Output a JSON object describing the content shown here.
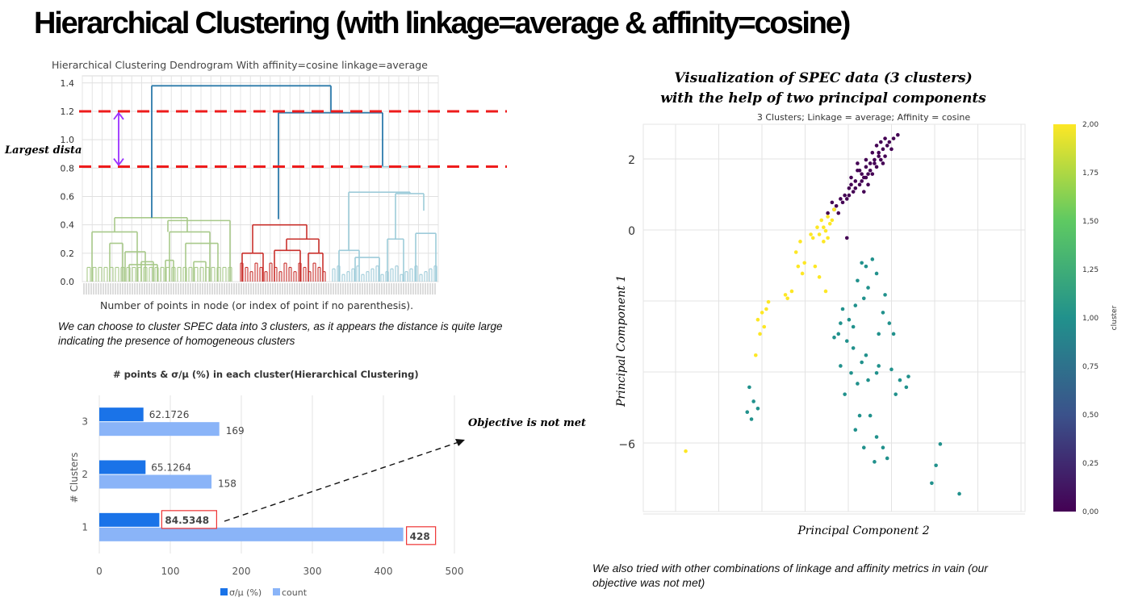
{
  "header": {
    "title": "Hierarchical Clustering (with linkage=average & affinity=cosine)"
  },
  "dendrogram": {
    "title": "Hierarchical Clustering Dendrogram With affinity=cosine linkage=average",
    "xlabel": "Number of points in node (or index of point if no parenthesis).",
    "annotation": "Largest distance",
    "note": "We can choose to cluster SPEC data into 3 clusters, as it appears the distance is quite large indicating the presence of homogeneous clusters",
    "colors": {
      "green": "#a8c98a",
      "red": "#c9302c",
      "lightblue": "#9dcbd9",
      "top": "#2d7bab",
      "cut": "#ee1c1c",
      "arrow": "#9b30ff"
    }
  },
  "annotations": {
    "objective": "Objective is not met"
  },
  "pca": {
    "title_line1": "Visualization of SPEC data (3 clusters)",
    "title_line2": "with the help of two principal components",
    "subtitle": "3 Clusters; Linkage = average; Affinity = cosine",
    "xlabel": "Principal Component 2",
    "ylabel": "Principal Component 1",
    "colorbar_label": "cluster"
  },
  "bottom_note": "We also tried with other combinations of linkage and affinity metrics in vain (our objective was not met)",
  "chart_data": [
    {
      "type": "dendrogram",
      "title": "Hierarchical Clustering Dendrogram With affinity=cosine linkage=average",
      "xlabel": "Number of points in node (or index of point if no parenthesis).",
      "ylabel": "",
      "yticks": [
        "0.0",
        "0.2",
        "0.4",
        "0.6",
        "0.8",
        "1.0",
        "1.2",
        "1.4"
      ],
      "ylim": [
        0,
        1.45
      ],
      "cut_lines": [
        1.2,
        0.81
      ],
      "merges": [
        {
          "name": "root",
          "height": 1.38
        },
        {
          "name": "red+lightblue",
          "height": 1.19
        },
        {
          "name": "lightblue-top",
          "height": 0.81
        },
        {
          "name": "red-top",
          "height": 0.44
        },
        {
          "name": "green-top",
          "height": 0.45
        }
      ],
      "grid": true
    },
    {
      "type": "bar",
      "orientation": "horizontal",
      "title": "# points & σ/μ (%) in each cluster(Hierarchical Clustering)",
      "ylabel": "# Clusters",
      "xlabel": "",
      "categories": [
        "1",
        "2",
        "3"
      ],
      "series": [
        {
          "name": "σ/μ (%)",
          "values": [
            84.5348,
            65.1264,
            62.1726
          ],
          "color": "#1a73e8"
        },
        {
          "name": "count",
          "values": [
            428,
            158,
            169
          ],
          "color": "#8ab4f8"
        }
      ],
      "value_labels": {
        "σ/μ (%)": [
          "84.5348",
          "65.1264",
          "62.1726"
        ],
        "count": [
          "428",
          "158",
          "169"
        ]
      },
      "xticks": [
        "0",
        "100",
        "200",
        "300",
        "400",
        "500"
      ],
      "xlim": [
        0,
        500
      ],
      "legend": "bottom",
      "grid": true
    },
    {
      "type": "scatter",
      "title": "3 Clusters; Linkage = average; Affinity = cosine",
      "xlabel": "Principal Component 2",
      "ylabel": "Principal Component 1",
      "yticks": [
        "2",
        "0",
        "−6"
      ],
      "ylim": [
        -7.9,
        3.0
      ],
      "xlim": [
        -8.5,
        9.5
      ],
      "colorbar": {
        "label": "cluster",
        "min": 0,
        "max": 2,
        "ticks": [
          "0,00",
          "0,25",
          "0,50",
          "0,75",
          "1,00",
          "1,25",
          "1,50",
          "1,75",
          "2,00"
        ]
      },
      "series": [
        {
          "cluster": 0,
          "color": "#440154",
          "points": [
            [
              1.2,
              1.2
            ],
            [
              1.5,
              1.4
            ],
            [
              1.8,
              1.6
            ],
            [
              2.0,
              1.8
            ],
            [
              2.2,
              1.9
            ],
            [
              2.4,
              2.0
            ],
            [
              2.6,
              2.2
            ],
            [
              2.8,
              2.3
            ],
            [
              3.0,
              2.4
            ],
            [
              1.3,
              1.5
            ],
            [
              1.6,
              1.7
            ],
            [
              1.9,
              1.5
            ],
            [
              2.1,
              1.3
            ],
            [
              2.3,
              1.6
            ],
            [
              2.5,
              1.8
            ],
            [
              2.7,
              2.0
            ],
            [
              2.9,
              2.1
            ],
            [
              1.0,
              1.0
            ],
            [
              1.1,
              0.9
            ],
            [
              1.4,
              1.1
            ],
            [
              1.7,
              1.3
            ],
            [
              2.0,
              1.5
            ],
            [
              2.2,
              1.7
            ],
            [
              2.4,
              1.9
            ],
            [
              2.6,
              2.1
            ],
            [
              2.8,
              1.9
            ],
            [
              3.1,
              2.5
            ],
            [
              3.3,
              2.6
            ],
            [
              3.5,
              2.7
            ],
            [
              0.8,
              0.9
            ],
            [
              0.6,
              0.7
            ],
            [
              0.9,
              0.8
            ],
            [
              1.6,
              1.9
            ],
            [
              2.3,
              2.2
            ],
            [
              2.7,
              2.5
            ],
            [
              0.4,
              0.8
            ],
            [
              1.2,
              1.0
            ],
            [
              1.5,
              1.2
            ],
            [
              1.9,
              1.1
            ],
            [
              2.1,
              1.6
            ],
            [
              0.5,
              0.6
            ],
            [
              0.7,
              0.5
            ],
            [
              2.0,
              2.0
            ],
            [
              2.5,
              2.4
            ],
            [
              1.8,
              1.4
            ],
            [
              3.2,
              2.3
            ],
            [
              0.2,
              0.5
            ],
            [
              1.3,
              1.3
            ],
            [
              1.7,
              1.7
            ],
            [
              2.9,
              2.6
            ],
            [
              1.1,
              -0.2
            ]
          ]
        },
        {
          "cluster": 1,
          "color": "#21918c",
          "points": [
            [
              1.8,
              -0.9
            ],
            [
              2.0,
              -1.0
            ],
            [
              2.3,
              -0.8
            ],
            [
              2.5,
              -1.2
            ],
            [
              1.6,
              -1.4
            ],
            [
              2.1,
              -1.6
            ],
            [
              1.9,
              -1.9
            ],
            [
              1.5,
              -2.1
            ],
            [
              0.9,
              -2.2
            ],
            [
              1.2,
              -2.5
            ],
            [
              0.7,
              -2.9
            ],
            [
              1.4,
              -3.3
            ],
            [
              2.0,
              -3.5
            ],
            [
              1.8,
              -3.7
            ],
            [
              1.3,
              -4.0
            ],
            [
              0.8,
              -3.8
            ],
            [
              1.0,
              -4.6
            ],
            [
              1.6,
              -4.3
            ],
            [
              2.1,
              -4.2
            ],
            [
              2.6,
              -3.8
            ],
            [
              3.2,
              -3.9
            ],
            [
              3.6,
              -4.2
            ],
            [
              3.9,
              -4.4
            ],
            [
              3.4,
              -4.6
            ],
            [
              2.5,
              -4.0
            ],
            [
              1.7,
              -5.2
            ],
            [
              2.2,
              -5.2
            ],
            [
              1.5,
              -5.6
            ],
            [
              2.5,
              -5.8
            ],
            [
              2.8,
              -6.1
            ],
            [
              1.9,
              -6.1
            ],
            [
              2.4,
              -6.5
            ],
            [
              3.0,
              -6.4
            ],
            [
              2.8,
              -2.3
            ],
            [
              3.1,
              -2.6
            ],
            [
              3.3,
              -2.9
            ],
            [
              1.4,
              -2.7
            ],
            [
              0.5,
              -3.0
            ],
            [
              2.6,
              -2.9
            ],
            [
              1.1,
              -3.1
            ],
            [
              -3.5,
              -4.4
            ],
            [
              -3.3,
              -4.8
            ],
            [
              -3.1,
              -5.0
            ],
            [
              -3.6,
              -5.1
            ],
            [
              -3.4,
              -5.3
            ],
            [
              5.5,
              -6.0
            ],
            [
              5.3,
              -6.6
            ],
            [
              5.1,
              -7.1
            ],
            [
              6.4,
              -7.4
            ],
            [
              4.0,
              -4.1
            ],
            [
              2.9,
              -1.8
            ],
            [
              0.8,
              -2.6
            ]
          ]
        },
        {
          "cluster": 2,
          "color": "#fde725",
          "points": [
            [
              0.3,
              0.2
            ],
            [
              0.1,
              0.0
            ],
            [
              -0.2,
              -0.1
            ],
            [
              -0.5,
              -0.2
            ],
            [
              -0.1,
              0.3
            ],
            [
              0.2,
              0.4
            ],
            [
              0.4,
              0.3
            ],
            [
              -0.3,
              0.1
            ],
            [
              0.0,
              -0.3
            ],
            [
              -0.6,
              -0.1
            ],
            [
              0.5,
              0.6
            ],
            [
              0.2,
              -0.2
            ],
            [
              -1.1,
              -0.3
            ],
            [
              -1.3,
              -0.6
            ],
            [
              -0.9,
              -0.9
            ],
            [
              -1.2,
              -1.0
            ],
            [
              -1.0,
              -1.2
            ],
            [
              -1.5,
              -1.7
            ],
            [
              -1.8,
              -1.8
            ],
            [
              -1.7,
              -1.9
            ],
            [
              -2.6,
              -2.0
            ],
            [
              -2.7,
              -2.2
            ],
            [
              -2.9,
              -2.3
            ],
            [
              -3.1,
              -2.5
            ],
            [
              -2.8,
              -2.7
            ],
            [
              -3.0,
              -2.9
            ],
            [
              -3.2,
              -3.5
            ],
            [
              -0.4,
              -1.0
            ],
            [
              -0.2,
              -1.3
            ],
            [
              0.1,
              -1.7
            ],
            [
              -6.5,
              -6.2
            ],
            [
              0.0,
              0.1
            ]
          ]
        }
      ],
      "grid": true
    }
  ]
}
